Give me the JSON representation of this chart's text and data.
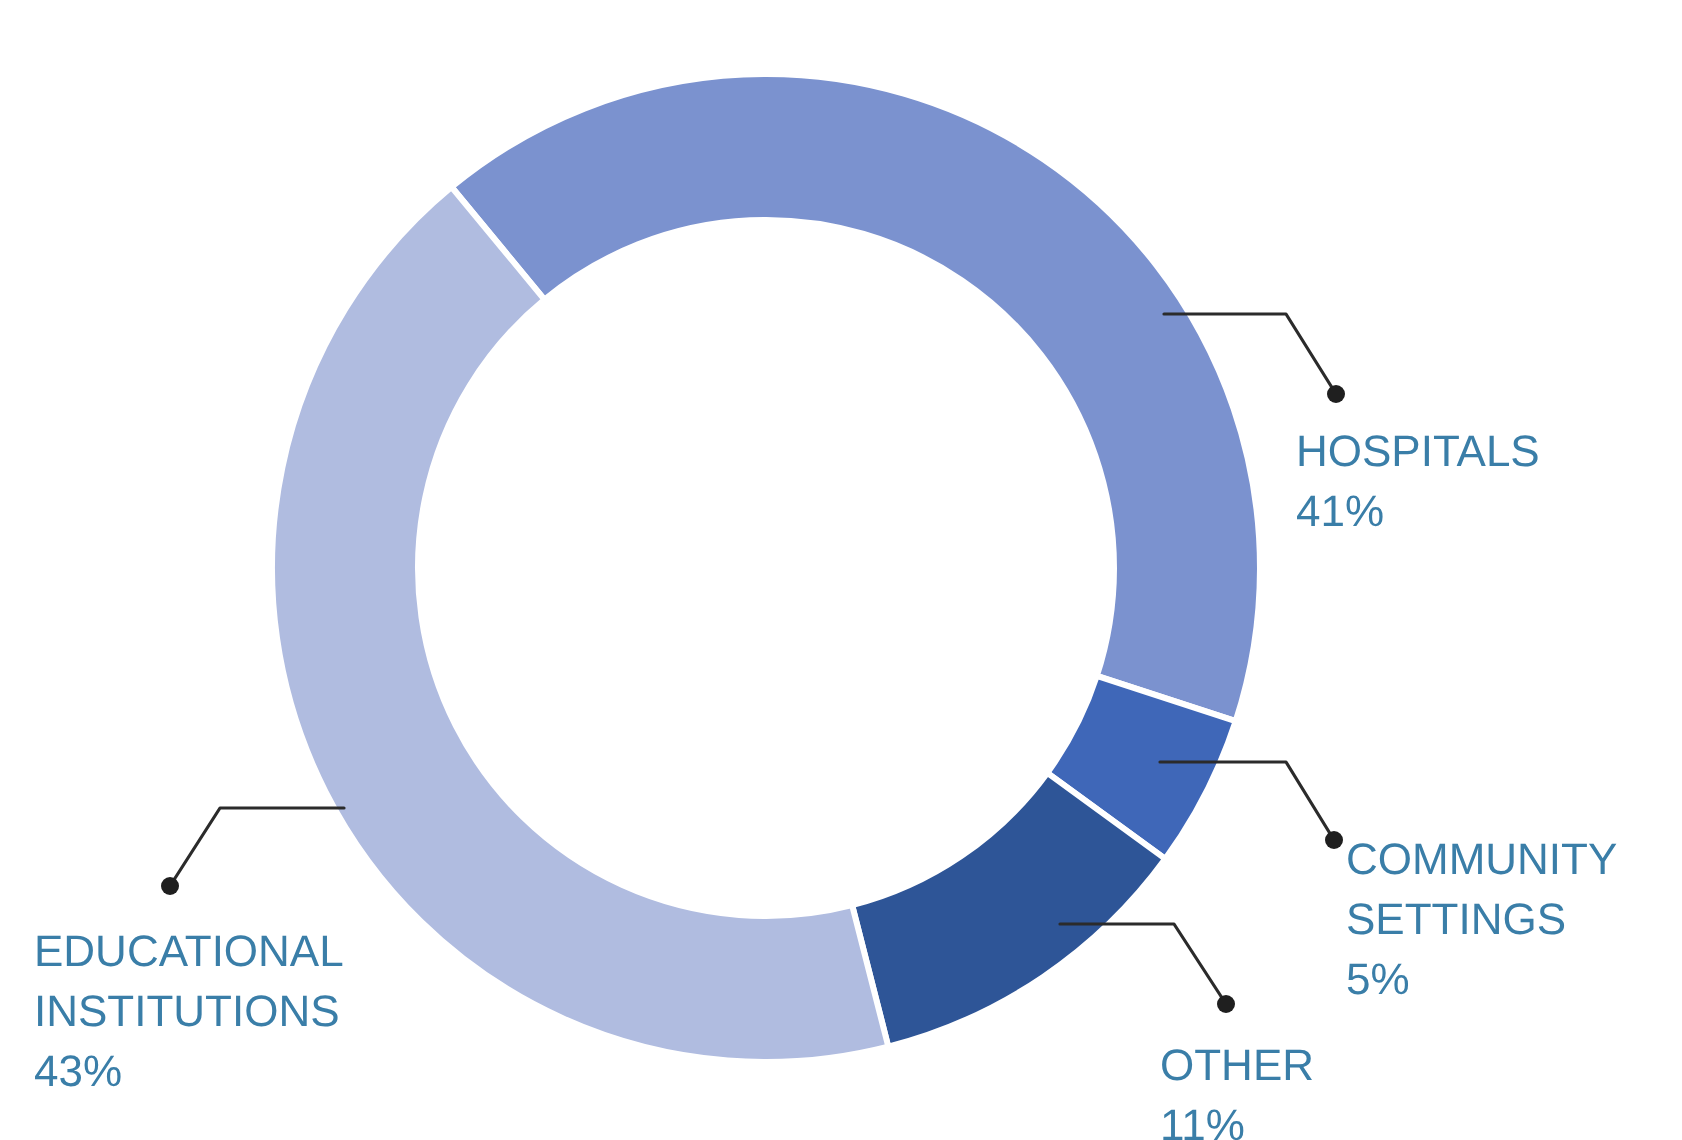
{
  "chart_data": {
    "type": "donut",
    "categories": [
      "HOSPITALS",
      "COMMUNITY SETTINGS",
      "OTHER",
      "EDUCATIONAL INSTITUTIONS"
    ],
    "values": [
      41,
      5,
      11,
      43
    ],
    "value_labels": [
      "41%",
      "5%",
      "11%",
      "43%"
    ],
    "colors": [
      "#7b92cf",
      "#3f67b8",
      "#2e5597",
      "#b0bce0"
    ]
  }
}
